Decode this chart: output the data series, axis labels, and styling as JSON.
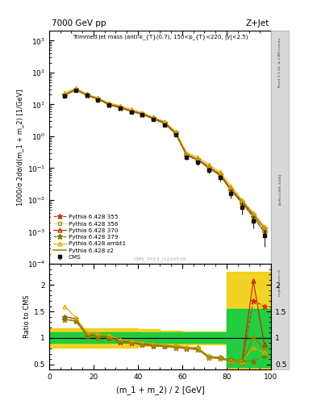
{
  "title_left": "7000 GeV pp",
  "title_right": "Z+Jet",
  "annotation": "Trimmed jet mass (anti-k_{T}(0.7), 150<p_{T}<220, |y|<2.5)",
  "cms_label": "CMS_2013_I1224539",
  "rivet_label": "Rivet 3.1.10, ≥ 2.8M events",
  "arxiv_label": "[arXiv:1306.3436]",
  "mcplots_label": "mcplots.cern.ch",
  "ylabel_main": "1000/σ 2dσ/d(m_1 + m_2) [1/GeV]",
  "ylabel_ratio": "Ratio to CMS",
  "xlabel": "(m_1 + m_2) / 2 [GeV]",
  "xlim": [
    0,
    100
  ],
  "ylim_main": [
    0.0001,
    2000
  ],
  "ylim_ratio": [
    0.4,
    2.4
  ],
  "ratio_yticks": [
    0.5,
    1.0,
    1.5,
    2.0
  ],
  "ratio_yticklabels": [
    "0.5",
    "1",
    "1.5",
    "2"
  ],
  "x_data": [
    7,
    12,
    17,
    22,
    27,
    32,
    37,
    42,
    47,
    52,
    57,
    62,
    67,
    72,
    77,
    82,
    87,
    92,
    97
  ],
  "cms_y": [
    18.0,
    28.0,
    19.0,
    14.0,
    9.5,
    7.5,
    5.8,
    4.7,
    3.3,
    2.3,
    1.1,
    0.22,
    0.15,
    0.085,
    0.05,
    0.016,
    0.006,
    0.0022,
    0.00075
  ],
  "cms_yerr": [
    1.5,
    2.5,
    1.8,
    1.3,
    0.9,
    0.7,
    0.55,
    0.45,
    0.3,
    0.22,
    0.1,
    0.04,
    0.025,
    0.018,
    0.012,
    0.005,
    0.0025,
    0.0009,
    0.0004
  ],
  "p355_y": [
    19.5,
    28.5,
    19.5,
    14.5,
    9.8,
    7.8,
    6.0,
    4.9,
    3.5,
    2.5,
    1.2,
    0.25,
    0.18,
    0.1,
    0.06,
    0.02,
    0.008,
    0.003,
    0.001
  ],
  "p356_y": [
    19.5,
    28.5,
    19.5,
    14.5,
    9.8,
    7.8,
    6.0,
    4.9,
    3.5,
    2.5,
    1.2,
    0.25,
    0.18,
    0.1,
    0.06,
    0.02,
    0.008,
    0.003,
    0.001
  ],
  "p370_y": [
    20.0,
    29.5,
    20.0,
    15.0,
    10.2,
    8.2,
    6.3,
    5.1,
    3.7,
    2.7,
    1.3,
    0.27,
    0.19,
    0.11,
    0.065,
    0.022,
    0.009,
    0.0035,
    0.0013
  ],
  "p379_y": [
    20.0,
    29.5,
    20.0,
    15.0,
    10.2,
    8.2,
    6.3,
    5.1,
    3.7,
    2.7,
    1.3,
    0.27,
    0.19,
    0.11,
    0.065,
    0.022,
    0.009,
    0.0035,
    0.0013
  ],
  "pambt1_y": [
    22.5,
    32.0,
    21.0,
    16.0,
    11.0,
    9.0,
    7.0,
    5.5,
    3.9,
    2.9,
    1.4,
    0.3,
    0.22,
    0.13,
    0.075,
    0.027,
    0.01,
    0.004,
    0.0015
  ],
  "pz2_y": [
    19.5,
    28.5,
    19.5,
    14.5,
    9.8,
    7.8,
    6.0,
    4.9,
    3.5,
    2.5,
    1.2,
    0.25,
    0.18,
    0.1,
    0.06,
    0.02,
    0.008,
    0.003,
    0.001
  ],
  "ratio_355": [
    1.35,
    1.32,
    1.05,
    1.02,
    1.0,
    0.92,
    0.9,
    0.87,
    0.85,
    0.84,
    0.82,
    0.8,
    0.78,
    0.63,
    0.61,
    0.56,
    0.54,
    1.7,
    1.6
  ],
  "ratio_356": [
    1.35,
    1.32,
    1.05,
    1.02,
    1.0,
    0.92,
    0.9,
    0.87,
    0.85,
    0.84,
    0.82,
    0.8,
    0.78,
    0.63,
    0.61,
    0.56,
    0.54,
    1.02,
    0.78
  ],
  "ratio_370": [
    1.4,
    1.36,
    1.07,
    1.04,
    1.02,
    0.94,
    0.92,
    0.89,
    0.87,
    0.86,
    0.84,
    0.82,
    0.81,
    0.65,
    0.63,
    0.58,
    0.57,
    2.08,
    0.87
  ],
  "ratio_379": [
    1.4,
    1.36,
    1.07,
    1.04,
    1.02,
    0.94,
    0.92,
    0.89,
    0.87,
    0.86,
    0.84,
    0.82,
    0.81,
    0.65,
    0.63,
    0.58,
    0.57,
    0.56,
    0.66
  ],
  "ratio_ambt1": [
    1.6,
    1.38,
    1.1,
    1.07,
    1.05,
    0.97,
    0.94,
    0.91,
    0.89,
    0.87,
    0.85,
    0.83,
    0.82,
    0.64,
    0.62,
    0.57,
    0.56,
    0.82,
    0.72
  ],
  "ratio_z2": [
    1.35,
    1.32,
    1.05,
    1.02,
    1.0,
    0.92,
    0.9,
    0.87,
    0.85,
    0.84,
    0.82,
    0.8,
    0.78,
    0.63,
    0.61,
    0.56,
    0.54,
    1.02,
    0.78
  ],
  "band_x_steps": [
    0,
    10,
    20,
    30,
    40,
    50,
    60,
    70,
    80,
    90,
    100
  ],
  "band_green_lo": [
    0.9,
    0.9,
    0.9,
    0.9,
    0.9,
    0.9,
    0.9,
    0.9,
    0.45,
    0.45,
    0.45
  ],
  "band_green_hi": [
    1.1,
    1.1,
    1.1,
    1.1,
    1.1,
    1.1,
    1.1,
    1.1,
    1.55,
    1.55,
    1.55
  ],
  "band_yellow_lo": [
    0.82,
    0.82,
    0.82,
    0.82,
    0.84,
    0.86,
    0.88,
    0.88,
    0.4,
    0.4,
    0.4
  ],
  "band_yellow_hi": [
    1.18,
    1.18,
    1.18,
    1.18,
    1.16,
    1.14,
    1.12,
    1.12,
    2.25,
    2.25,
    2.25
  ],
  "color_355": "#cc3300",
  "color_356": "#999900",
  "color_370": "#cc2200",
  "color_379": "#777700",
  "color_ambt1": "#ddaa00",
  "color_z2": "#888800",
  "color_cms": "#111111",
  "color_green_band": "#00cc44",
  "color_yellow_band": "#eecc00",
  "right_strip_color": "#d8d8d8"
}
